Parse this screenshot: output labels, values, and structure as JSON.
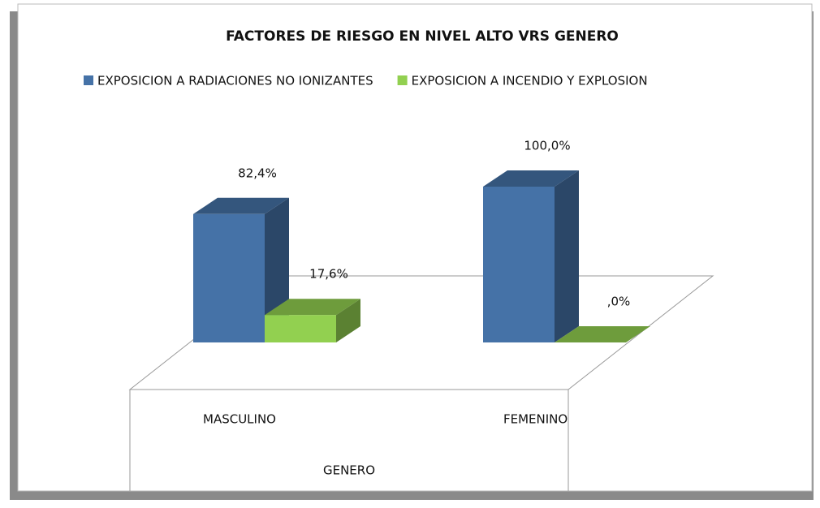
{
  "chart_data": {
    "type": "bar3d",
    "title": "FACTORES DE RIESGO EN NIVEL ALTO VRS GENERO",
    "xlabel": "GENERO",
    "categories": [
      "MASCULINO",
      "FEMENINO"
    ],
    "series": [
      {
        "name": "EXPOSICION A RADIACIONES NO IONIZANTES",
        "color": "#4572a7",
        "values": [
          82.4,
          100.0
        ],
        "value_labels": [
          "82,4%",
          "100,0%"
        ]
      },
      {
        "name": "EXPOSICION A INCENDIO Y EXPLOSION",
        "color": "#92d050",
        "values": [
          17.6,
          0.0
        ],
        "value_labels": [
          "17,6%",
          ",0%"
        ]
      }
    ],
    "legend": "top"
  }
}
